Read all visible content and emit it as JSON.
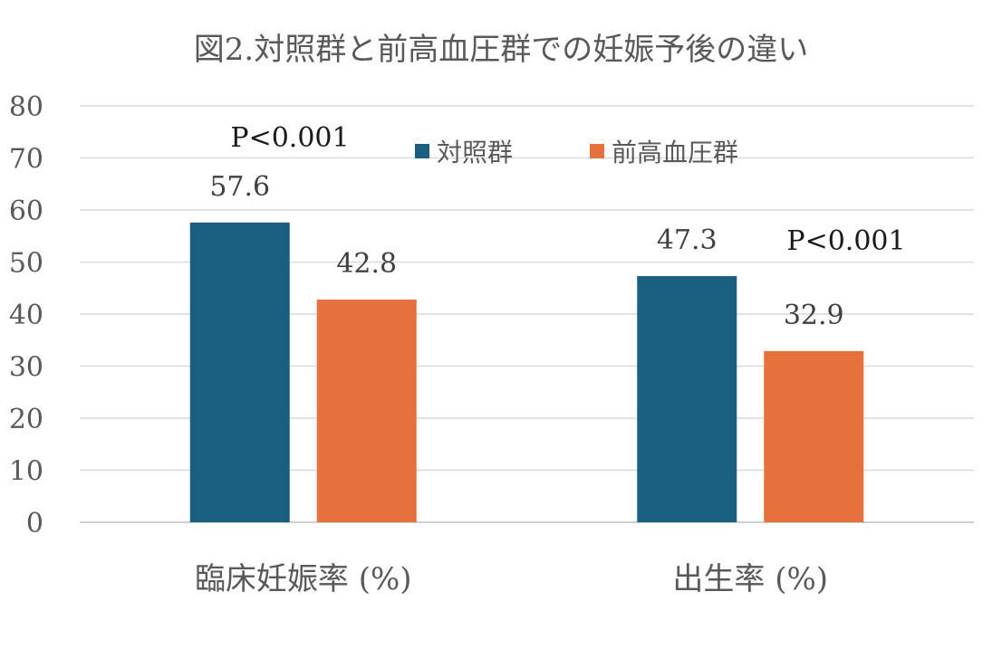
{
  "chart_data": {
    "type": "bar",
    "title": "図2.対照群と前高血圧群での妊娠予後の違い",
    "categories": [
      "臨床妊娠率 (%)",
      "出生率 (%)"
    ],
    "series": [
      {
        "name": "対照群",
        "color": "#1b5f80",
        "values": [
          57.6,
          47.3
        ]
      },
      {
        "name": "前高血圧群",
        "color": "#e5713c",
        "values": [
          42.8,
          32.9
        ]
      }
    ],
    "value_labels": [
      [
        "57.6",
        "47.3"
      ],
      [
        "42.8",
        "32.9"
      ]
    ],
    "y_ticks": [
      "0",
      "10",
      "20",
      "30",
      "40",
      "50",
      "60",
      "70",
      "80"
    ],
    "ylim": [
      0,
      80
    ],
    "grid": true,
    "legend_position": "top",
    "annotations": [
      "P<0.001",
      "P<0.001"
    ]
  }
}
